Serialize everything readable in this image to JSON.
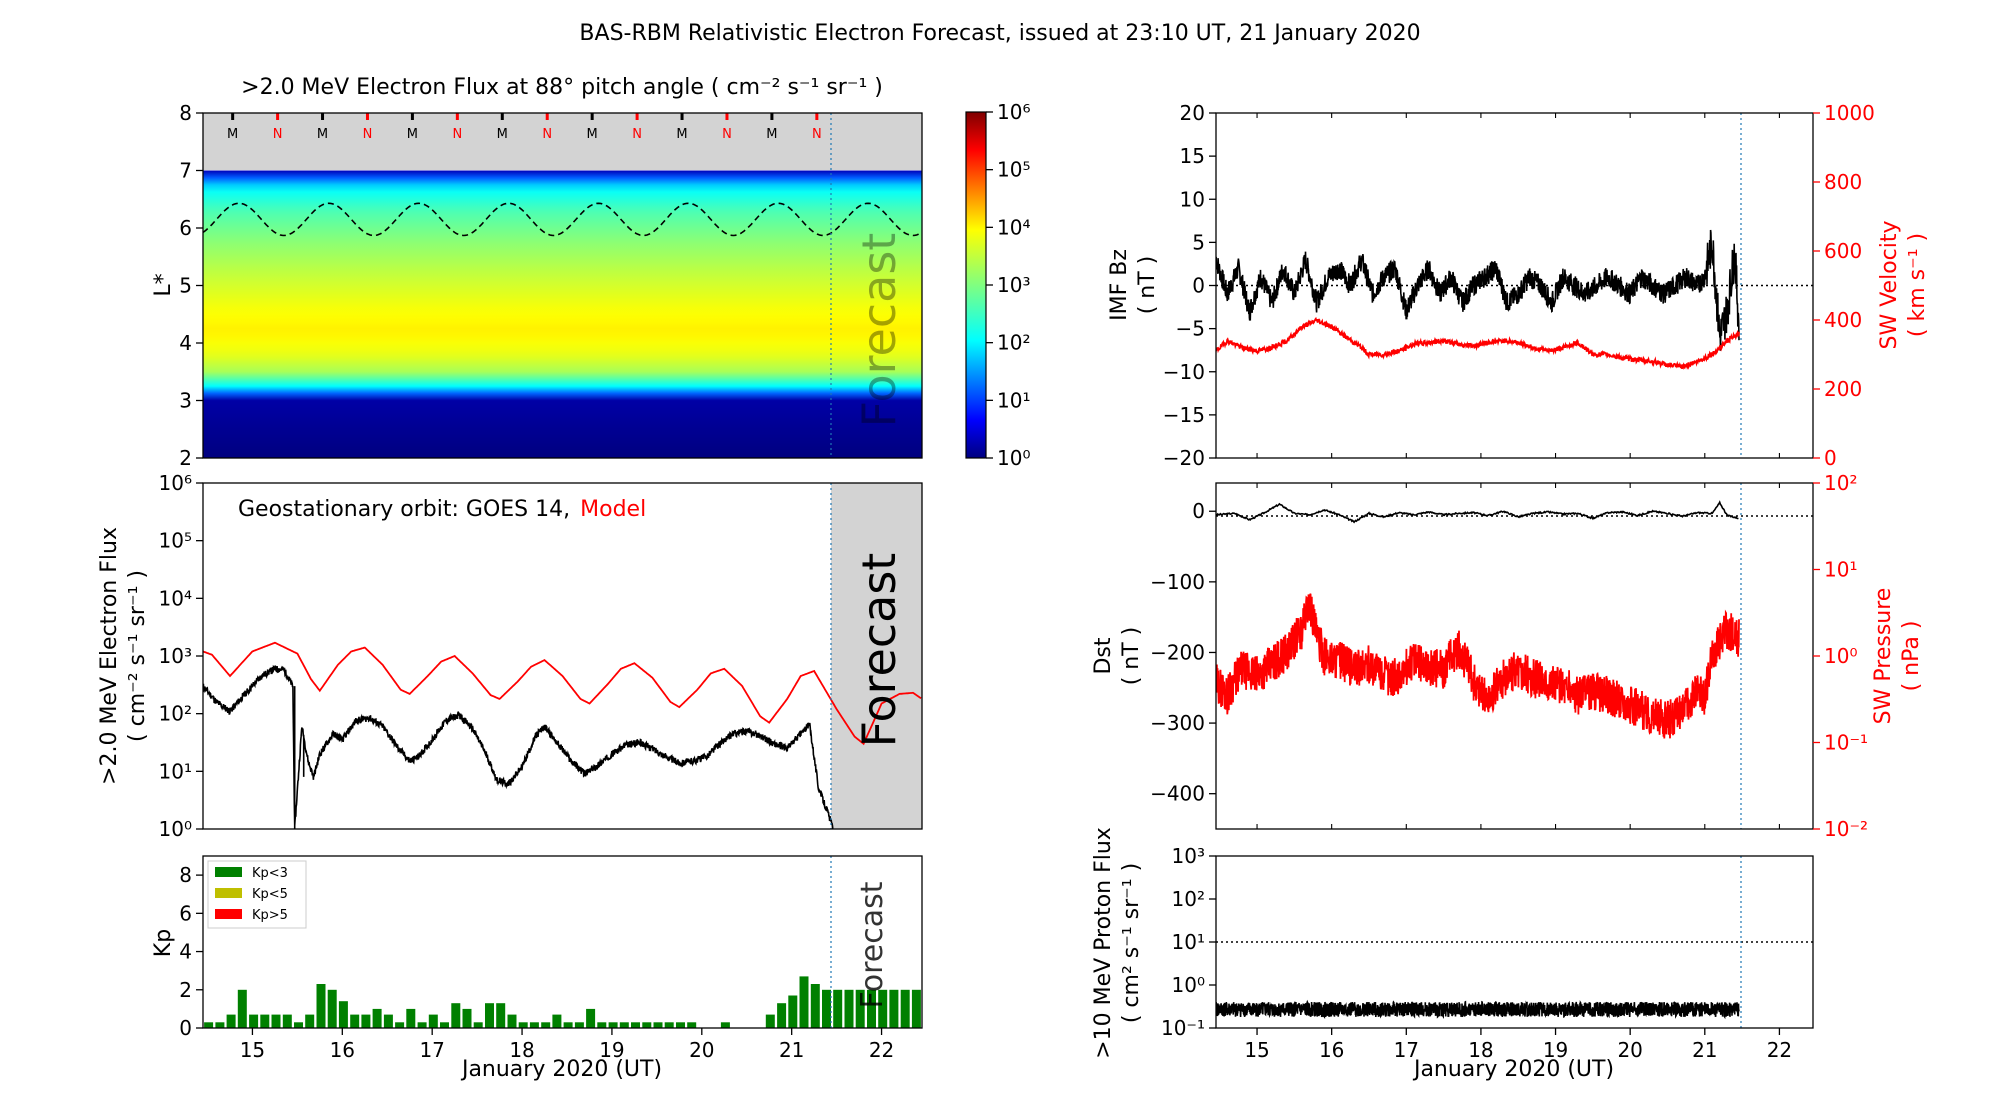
{
  "figure": {
    "title": "BAS-RBM Relativistic Electron Forecast, issued at 23:10 UT, 21 January 2020",
    "forecast_word": "Forecast",
    "xlabel": "January 2020 (UT)",
    "x_ticks": [
      "15",
      "16",
      "17",
      "18",
      "19",
      "20",
      "21",
      "22"
    ]
  },
  "colors": {
    "model": "#ff0000",
    "observed": "#000000",
    "forecast_shade": "#d3d3d3",
    "kp_low": "#008000",
    "kp_mid": "#bfbf00",
    "kp_high": "#ff0000",
    "forecast_line": "#1f77b4"
  },
  "chart_data": [
    {
      "id": "lstar_flux",
      "type": "heatmap",
      "title": ">2.0 MeV Electron Flux at 88° pitch angle ( cm⁻² s⁻¹ sr⁻¹ )",
      "ylabel": "L*",
      "ylim": [
        2,
        8
      ],
      "y_ticks": [
        "2",
        "3",
        "4",
        "5",
        "6",
        "7",
        "8"
      ],
      "xlim": [
        14.45,
        22.45
      ],
      "forecast_start": 21.46,
      "colorbar": {
        "scale": "log",
        "range": [
          1,
          1000000
        ],
        "ticks": [
          "10⁰",
          "10¹",
          "10²",
          "10³",
          "10⁴",
          "10⁵",
          "10⁶"
        ]
      },
      "flux_profile_log10": [
        {
          "L": 2.0,
          "v": 0.0
        },
        {
          "L": 3.0,
          "v": 0.2
        },
        {
          "L": 3.2,
          "v": 1.8
        },
        {
          "L": 3.5,
          "v": 3.3
        },
        {
          "L": 3.8,
          "v": 3.8
        },
        {
          "L": 4.2,
          "v": 4.05
        },
        {
          "L": 4.6,
          "v": 3.9
        },
        {
          "L": 5.2,
          "v": 3.5
        },
        {
          "L": 5.8,
          "v": 3.05
        },
        {
          "L": 6.3,
          "v": 2.6
        },
        {
          "L": 6.7,
          "v": 2.0
        },
        {
          "L": 6.95,
          "v": 0.8
        },
        {
          "L": 7.0,
          "v": 0.3
        }
      ],
      "no_data_above_L": 7.0,
      "geo_orbit_line": {
        "mean_L": 6.15,
        "amplitude": 0.28,
        "period_days": 1.0
      },
      "local_time_markers": [
        "M",
        "N",
        "M",
        "N",
        "M",
        "N",
        "M",
        "N",
        "M",
        "N",
        "M",
        "N",
        "M",
        "N"
      ]
    },
    {
      "id": "geo_flux",
      "type": "line",
      "ylabel": ">2.0 MeV Electron Flux",
      "ylabel2": "( cm⁻² s⁻¹ sr⁻¹ )",
      "annotation": "Geostationary orbit:   GOES 14,",
      "annotation_model": "Model",
      "yscale": "log",
      "ylim": [
        1,
        1000000
      ],
      "y_ticks": [
        "10⁰",
        "10¹",
        "10²",
        "10³",
        "10⁴",
        "10⁵",
        "10⁶"
      ],
      "xlim": [
        14.45,
        22.45
      ],
      "forecast_start": 21.46,
      "series": [
        {
          "name": "GOES 14",
          "x": [
            14.45,
            14.6,
            14.75,
            14.95,
            15.1,
            15.25,
            15.35,
            15.45,
            15.47,
            15.55,
            15.62,
            15.68,
            15.75,
            15.9,
            16.0,
            16.15,
            16.3,
            16.45,
            16.6,
            16.75,
            16.85,
            17.0,
            17.15,
            17.3,
            17.45,
            17.6,
            17.72,
            17.85,
            18.0,
            18.15,
            18.25,
            18.4,
            18.55,
            18.7,
            18.85,
            19.0,
            19.15,
            19.3,
            19.45,
            19.6,
            19.75,
            19.9,
            20.05,
            20.2,
            20.35,
            20.5,
            20.65,
            20.8,
            20.95,
            21.1,
            21.2,
            21.3,
            21.4,
            21.46
          ],
          "values": [
            300,
            160,
            110,
            250,
            450,
            600,
            580,
            300,
            1.0,
            60,
            15,
            8,
            20,
            45,
            35,
            75,
            85,
            60,
            28,
            15,
            18,
            35,
            75,
            95,
            55,
            20,
            7,
            6,
            12,
            40,
            60,
            30,
            15,
            9,
            13,
            20,
            28,
            32,
            25,
            18,
            14,
            15,
            18,
            30,
            45,
            50,
            42,
            30,
            25,
            45,
            65,
            5,
            2,
            1
          ]
        },
        {
          "name": "Model",
          "x": [
            14.45,
            14.55,
            14.75,
            15.0,
            15.25,
            15.5,
            15.65,
            15.75,
            15.95,
            16.1,
            16.25,
            16.45,
            16.65,
            16.75,
            16.95,
            17.1,
            17.25,
            17.45,
            17.65,
            17.75,
            17.95,
            18.1,
            18.25,
            18.45,
            18.65,
            18.75,
            18.95,
            19.1,
            19.25,
            19.45,
            19.65,
            19.75,
            19.95,
            20.1,
            20.25,
            20.45,
            20.65,
            20.75,
            20.95,
            21.1,
            21.25,
            21.5,
            21.7,
            21.8,
            22.0,
            22.2,
            22.35,
            22.45
          ],
          "values": [
            1200,
            1050,
            450,
            1200,
            1700,
            1100,
            400,
            250,
            700,
            1200,
            1400,
            700,
            260,
            220,
            450,
            800,
            1000,
            500,
            210,
            180,
            360,
            650,
            850,
            450,
            180,
            150,
            320,
            600,
            750,
            420,
            160,
            130,
            260,
            500,
            600,
            300,
            90,
            70,
            180,
            450,
            550,
            120,
            40,
            30,
            150,
            220,
            230,
            180
          ]
        }
      ]
    },
    {
      "id": "kp",
      "type": "bar",
      "ylabel": "Kp",
      "ylim": [
        0,
        9
      ],
      "y_ticks": [
        "0",
        "2",
        "4",
        "6",
        "8"
      ],
      "xlim": [
        14.45,
        22.45
      ],
      "forecast_start": 21.46,
      "legend": [
        "Kp<3",
        "Kp<5",
        "Kp>5"
      ],
      "legend_placement": "top-left",
      "bar_width_days": 0.1,
      "values": [
        0.3,
        0.3,
        0.7,
        2.0,
        0.7,
        0.7,
        0.7,
        0.7,
        0.3,
        0.7,
        2.3,
        2.0,
        1.4,
        0.7,
        0.7,
        1.0,
        0.7,
        0.3,
        1.0,
        0.3,
        0.7,
        0.3,
        1.3,
        1.0,
        0.3,
        1.3,
        1.3,
        0.7,
        0.3,
        0.3,
        0.3,
        0.7,
        0.3,
        0.3,
        1.0,
        0.3,
        0.3,
        0.3,
        0.3,
        0.3,
        0.3,
        0.3,
        0.3,
        0.3,
        0,
        0,
        0.3,
        0,
        0,
        0,
        0.7,
        1.3,
        1.7,
        2.7,
        2.3,
        2.0,
        2.0,
        2.0,
        2.0,
        2.0,
        2.0,
        2.0,
        2.0,
        2.0
      ]
    },
    {
      "id": "imf_bz_sw_velocity",
      "type": "line",
      "ylabel": "IMF Bz",
      "ylabel_unit": "( nT )",
      "ylim": [
        -20,
        20
      ],
      "y_ticks": [
        "−20",
        "−15",
        "−10",
        "−5",
        "0",
        "5",
        "10",
        "15",
        "20"
      ],
      "ylabel_right": "SW Velocity",
      "ylabel_right_unit": "( km s⁻¹ )",
      "ylim_right": [
        0,
        1000
      ],
      "y_ticks_right": [
        "0",
        "200",
        "400",
        "600",
        "800",
        "1000"
      ],
      "xlim": [
        14.45,
        22.45
      ],
      "forecast_start": 21.46,
      "series": [
        {
          "name": "IMF Bz",
          "x": [
            14.45,
            14.6,
            14.75,
            14.9,
            15.05,
            15.2,
            15.35,
            15.5,
            15.65,
            15.8,
            15.95,
            16.1,
            16.25,
            16.4,
            16.55,
            16.7,
            16.85,
            17.0,
            17.15,
            17.3,
            17.45,
            17.6,
            17.75,
            17.9,
            18.05,
            18.2,
            18.35,
            18.5,
            18.65,
            18.8,
            18.95,
            19.1,
            19.25,
            19.4,
            19.55,
            19.7,
            19.85,
            20.0,
            20.15,
            20.3,
            20.45,
            20.6,
            20.75,
            20.9,
            21.0,
            21.1,
            21.2,
            21.3,
            21.4,
            21.46
          ],
          "values": [
            3,
            -1,
            2,
            -3,
            1,
            -2,
            2,
            -1,
            3,
            -2,
            1,
            2,
            0,
            3,
            -1,
            1,
            2,
            -3,
            0,
            2,
            -1,
            1,
            -2,
            0,
            1,
            2,
            -2,
            -1,
            1,
            0,
            -2,
            1,
            0,
            -1,
            0,
            1,
            0,
            -1,
            1,
            0,
            -1,
            0,
            1,
            0,
            1,
            5,
            -6,
            -3,
            4,
            -5
          ]
        },
        {
          "name": "SW Velocity",
          "x": [
            14.45,
            14.6,
            14.8,
            15.0,
            15.2,
            15.4,
            15.6,
            15.8,
            16.0,
            16.2,
            16.4,
            16.5,
            16.7,
            16.9,
            17.1,
            17.3,
            17.5,
            17.7,
            17.9,
            18.1,
            18.3,
            18.5,
            18.7,
            18.9,
            19.1,
            19.3,
            19.5,
            19.7,
            19.9,
            20.1,
            20.3,
            20.5,
            20.7,
            20.9,
            21.1,
            21.3,
            21.46
          ],
          "values": [
            310,
            340,
            320,
            310,
            320,
            340,
            380,
            400,
            380,
            350,
            320,
            300,
            300,
            310,
            330,
            335,
            340,
            330,
            325,
            335,
            340,
            335,
            320,
            310,
            320,
            335,
            300,
            300,
            290,
            285,
            280,
            270,
            265,
            280,
            300,
            340,
            360
          ]
        }
      ]
    },
    {
      "id": "dst_sw_pressure",
      "type": "line",
      "ylabel": "Dst",
      "ylabel_unit": "( nT )",
      "ylim": [
        -450,
        40
      ],
      "y_ticks": [
        "−400",
        "−300",
        "−200",
        "−100",
        "0"
      ],
      "ylabel_right": "SW Pressure",
      "ylabel_right_unit": "( nPa )",
      "yscale_right": "log",
      "ylim_right": [
        0.01,
        100
      ],
      "y_ticks_right": [
        "10⁻²",
        "10⁻¹",
        "10⁰",
        "10¹",
        "10²"
      ],
      "xlim": [
        14.45,
        22.45
      ],
      "forecast_start": 21.46,
      "series": [
        {
          "name": "Dst",
          "x": [
            14.45,
            14.7,
            14.9,
            15.1,
            15.3,
            15.5,
            15.7,
            15.9,
            16.1,
            16.3,
            16.5,
            16.7,
            16.9,
            17.1,
            17.3,
            17.5,
            17.7,
            17.9,
            18.1,
            18.3,
            18.5,
            18.7,
            18.9,
            19.1,
            19.3,
            19.5,
            19.7,
            19.9,
            20.1,
            20.3,
            20.5,
            20.7,
            20.9,
            21.1,
            21.2,
            21.3,
            21.46
          ],
          "values": [
            -5,
            -3,
            -12,
            -2,
            10,
            -3,
            -5,
            2,
            -5,
            -15,
            -3,
            -8,
            -2,
            -5,
            -1,
            -5,
            -3,
            -2,
            -6,
            0,
            -8,
            -3,
            -1,
            -4,
            -3,
            -10,
            -2,
            -1,
            -6,
            0,
            -3,
            -7,
            -2,
            -3,
            12,
            -6,
            -10
          ]
        },
        {
          "name": "SW Pressure",
          "x": [
            14.45,
            14.6,
            14.8,
            15.0,
            15.2,
            15.4,
            15.6,
            15.7,
            15.8,
            15.9,
            16.1,
            16.3,
            16.5,
            16.7,
            16.9,
            17.1,
            17.3,
            17.5,
            17.7,
            17.9,
            18.1,
            18.3,
            18.5,
            18.7,
            18.9,
            19.1,
            19.3,
            19.5,
            19.7,
            19.9,
            20.1,
            20.3,
            20.5,
            20.7,
            20.9,
            21.0,
            21.1,
            21.2,
            21.3,
            21.46
          ],
          "values": [
            0.5,
            0.35,
            0.7,
            0.6,
            0.8,
            1.1,
            2.0,
            4.0,
            1.6,
            1.0,
            0.9,
            0.7,
            0.8,
            0.6,
            0.55,
            0.9,
            0.75,
            0.7,
            1.2,
            0.5,
            0.3,
            0.55,
            0.7,
            0.55,
            0.5,
            0.45,
            0.35,
            0.4,
            0.35,
            0.3,
            0.25,
            0.2,
            0.18,
            0.22,
            0.4,
            0.3,
            0.9,
            1.5,
            2.0,
            1.6
          ]
        }
      ]
    },
    {
      "id": "proton_flux",
      "type": "line",
      "ylabel": ">10 MeV Proton Flux",
      "ylabel2": "( cm² s⁻¹ sr⁻¹ )",
      "yscale": "log",
      "ylim": [
        0.1,
        1000
      ],
      "y_ticks": [
        "10⁻¹",
        "10⁰",
        "10¹",
        "10²",
        "10³"
      ],
      "threshold": 10,
      "xlim": [
        14.45,
        22.45
      ],
      "forecast_start": 21.46,
      "series": [
        {
          "name": "Proton Flux",
          "mean": 0.27,
          "x": [
            14.45,
            21.46
          ]
        }
      ]
    }
  ]
}
